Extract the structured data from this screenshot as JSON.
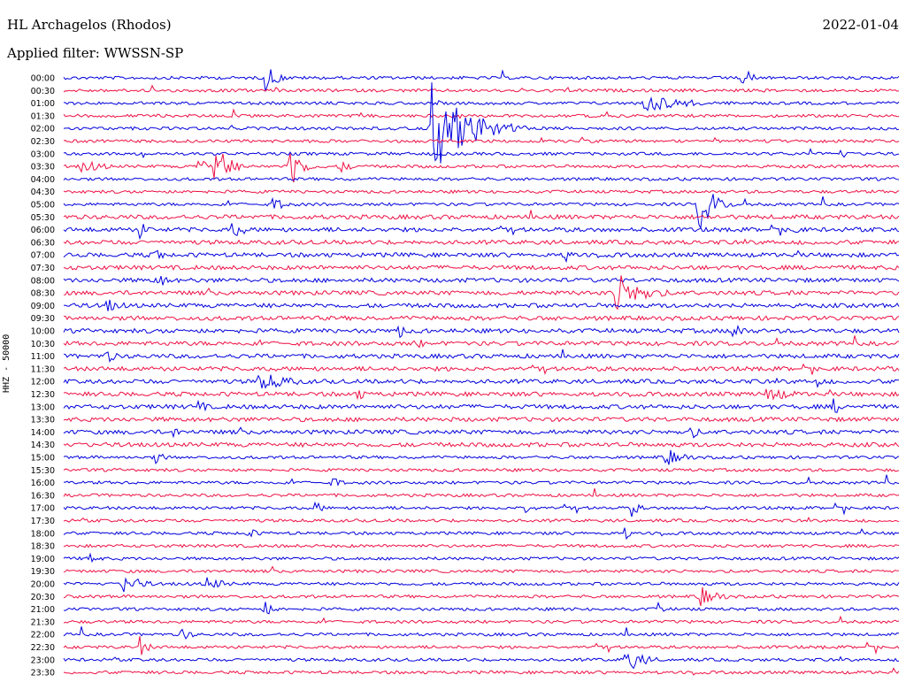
{
  "header": {
    "station": "HL Archagelos (Rhodos)",
    "filter": "Applied filter: WWSSN-SP",
    "date": "2022-01-04",
    "channel": "HHZ - 50000"
  },
  "colors": {
    "trace_even": "#0000dd",
    "trace_odd": "#ee1144"
  },
  "chart_data": {
    "type": "line",
    "title": "HL Archagelos (Rhodos)",
    "subtitle": "Applied filter: WWSSN-SP",
    "ylabel": "HHZ - 50000",
    "row_labels": [
      "00:00",
      "00:30",
      "01:00",
      "01:30",
      "02:00",
      "02:30",
      "03:00",
      "03:30",
      "04:00",
      "04:30",
      "05:00",
      "05:30",
      "06:00",
      "06:30",
      "07:00",
      "07:30",
      "08:00",
      "08:30",
      "09:00",
      "09:30",
      "10:00",
      "10:30",
      "11:00",
      "11:30",
      "12:00",
      "12:30",
      "13:00",
      "13:30",
      "14:00",
      "14:30",
      "15:00",
      "15:30",
      "16:00",
      "16:30",
      "17:00",
      "17:30",
      "18:00",
      "18:30",
      "19:00",
      "19:30",
      "20:00",
      "20:30",
      "21:00",
      "21:30",
      "22:00",
      "22:30",
      "23:00",
      "23:30"
    ],
    "grid": false,
    "events": [
      {
        "row": 0,
        "t": 0.24,
        "amp": 22,
        "dur": 0.012
      },
      {
        "row": 0,
        "t": 0.81,
        "amp": 16,
        "dur": 0.012
      },
      {
        "row": 2,
        "t": 0.69,
        "amp": 12,
        "dur": 0.05
      },
      {
        "row": 4,
        "t": 0.44,
        "amp": 55,
        "dur": 0.04
      },
      {
        "row": 6,
        "t": 0.93,
        "amp": 7,
        "dur": 0.01
      },
      {
        "row": 7,
        "t": 0.18,
        "amp": 30,
        "dur": 0.015
      },
      {
        "row": 7,
        "t": 0.27,
        "amp": 35,
        "dur": 0.012
      },
      {
        "row": 7,
        "t": 0.02,
        "amp": 8,
        "dur": 0.03
      },
      {
        "row": 7,
        "t": 0.16,
        "amp": 9,
        "dur": 0.02
      },
      {
        "row": 7,
        "t": 0.33,
        "amp": 8,
        "dur": 0.015
      },
      {
        "row": 10,
        "t": 0.76,
        "amp": 40,
        "dur": 0.015
      },
      {
        "row": 10,
        "t": 0.25,
        "amp": 8,
        "dur": 0.02
      },
      {
        "row": 12,
        "t": 0.09,
        "amp": 12,
        "dur": 0.01
      },
      {
        "row": 12,
        "t": 0.2,
        "amp": 10,
        "dur": 0.02
      },
      {
        "row": 12,
        "t": 0.87,
        "amp": 10,
        "dur": 0.01
      },
      {
        "row": 14,
        "t": 0.11,
        "amp": 10,
        "dur": 0.01
      },
      {
        "row": 14,
        "t": 0.6,
        "amp": 12,
        "dur": 0.01
      },
      {
        "row": 16,
        "t": 0.11,
        "amp": 9,
        "dur": 0.02
      },
      {
        "row": 17,
        "t": 0.66,
        "amp": 26,
        "dur": 0.03
      },
      {
        "row": 18,
        "t": 0.05,
        "amp": 9,
        "dur": 0.02
      },
      {
        "row": 20,
        "t": 0.4,
        "amp": 10,
        "dur": 0.01
      },
      {
        "row": 20,
        "t": 0.8,
        "amp": 12,
        "dur": 0.015
      },
      {
        "row": 21,
        "t": 0.42,
        "amp": 10,
        "dur": 0.01
      },
      {
        "row": 22,
        "t": 0.05,
        "amp": 12,
        "dur": 0.01
      },
      {
        "row": 24,
        "t": 0.23,
        "amp": 12,
        "dur": 0.04
      },
      {
        "row": 24,
        "t": 0.9,
        "amp": 10,
        "dur": 0.01
      },
      {
        "row": 25,
        "t": 0.35,
        "amp": 10,
        "dur": 0.01
      },
      {
        "row": 25,
        "t": 0.84,
        "amp": 10,
        "dur": 0.03
      },
      {
        "row": 26,
        "t": 0.16,
        "amp": 10,
        "dur": 0.01
      },
      {
        "row": 26,
        "t": 0.92,
        "amp": 12,
        "dur": 0.01
      },
      {
        "row": 28,
        "t": 0.13,
        "amp": 8,
        "dur": 0.01
      },
      {
        "row": 28,
        "t": 0.75,
        "amp": 10,
        "dur": 0.01
      },
      {
        "row": 30,
        "t": 0.11,
        "amp": 9,
        "dur": 0.01
      },
      {
        "row": 30,
        "t": 0.72,
        "amp": 12,
        "dur": 0.02
      },
      {
        "row": 32,
        "t": 0.32,
        "amp": 10,
        "dur": 0.01
      },
      {
        "row": 34,
        "t": 0.3,
        "amp": 9,
        "dur": 0.01
      },
      {
        "row": 34,
        "t": 0.55,
        "amp": 12,
        "dur": 0.01
      },
      {
        "row": 34,
        "t": 0.68,
        "amp": 10,
        "dur": 0.01
      },
      {
        "row": 36,
        "t": 0.22,
        "amp": 9,
        "dur": 0.01
      },
      {
        "row": 36,
        "t": 0.67,
        "amp": 9,
        "dur": 0.01
      },
      {
        "row": 38,
        "t": 0.03,
        "amp": 10,
        "dur": 0.01
      },
      {
        "row": 40,
        "t": 0.07,
        "amp": 14,
        "dur": 0.02
      },
      {
        "row": 40,
        "t": 0.17,
        "amp": 10,
        "dur": 0.02
      },
      {
        "row": 41,
        "t": 0.76,
        "amp": 14,
        "dur": 0.02
      },
      {
        "row": 42,
        "t": 0.24,
        "amp": 12,
        "dur": 0.01
      },
      {
        "row": 42,
        "t": 0.71,
        "amp": 9,
        "dur": 0.01
      },
      {
        "row": 44,
        "t": 0.14,
        "amp": 12,
        "dur": 0.01
      },
      {
        "row": 45,
        "t": 0.09,
        "amp": 14,
        "dur": 0.01
      },
      {
        "row": 46,
        "t": 0.67,
        "amp": 18,
        "dur": 0.02
      }
    ]
  }
}
